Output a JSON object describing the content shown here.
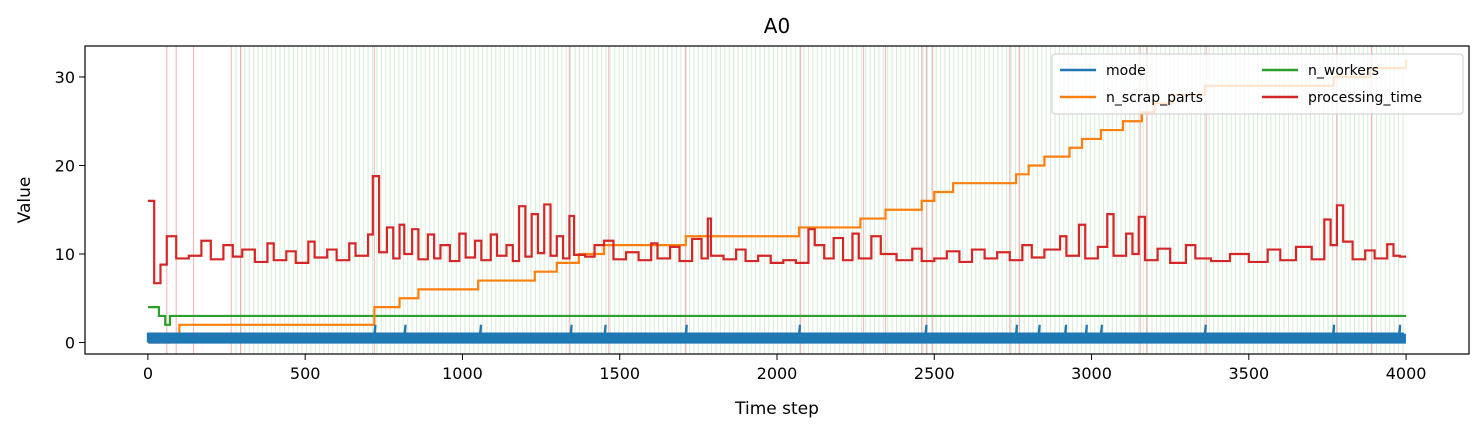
{
  "chart_data": {
    "type": "line",
    "title": "A0",
    "xlabel": "Time step",
    "ylabel": "Value",
    "xlim": [
      -200,
      4200
    ],
    "ylim": [
      -1.3,
      33.5
    ],
    "xticks": [
      0,
      500,
      1000,
      1500,
      2000,
      2500,
      3000,
      3500,
      4000
    ],
    "yticks": [
      0,
      10,
      20,
      30
    ],
    "grid": false,
    "legend_placement": "top-right",
    "legend_columns": 2,
    "series": [
      {
        "name": "mode",
        "color": "#1f77b4",
        "style": "oscillating",
        "x_range": [
          0,
          4000
        ],
        "low": 0,
        "high": 1,
        "spikes_to_2_at": [
          720,
          815,
          885,
          1055,
          1345,
          1450,
          1710,
          2070,
          2265,
          2470,
          2625,
          2760,
          2830,
          2915,
          2980,
          3030,
          3165,
          3195,
          3360,
          3770,
          3885,
          3980
        ]
      },
      {
        "name": "n_scrap_parts",
        "color": "#ff7f0e",
        "style": "step",
        "points": [
          [
            0,
            0
          ],
          [
            70,
            1
          ],
          [
            100,
            2
          ],
          [
            290,
            2
          ],
          [
            720,
            4
          ],
          [
            800,
            5
          ],
          [
            860,
            6
          ],
          [
            1050,
            7
          ],
          [
            1230,
            8
          ],
          [
            1300,
            9
          ],
          [
            1370,
            10
          ],
          [
            1450,
            11
          ],
          [
            1710,
            12
          ],
          [
            2070,
            13
          ],
          [
            2265,
            14
          ],
          [
            2345,
            15
          ],
          [
            2460,
            16
          ],
          [
            2500,
            17
          ],
          [
            2560,
            18
          ],
          [
            2760,
            19
          ],
          [
            2800,
            20
          ],
          [
            2850,
            21
          ],
          [
            2930,
            22
          ],
          [
            2970,
            23
          ],
          [
            3030,
            24
          ],
          [
            3100,
            25
          ],
          [
            3160,
            26
          ],
          [
            3200,
            27
          ],
          [
            3260,
            28
          ],
          [
            3360,
            29
          ],
          [
            3770,
            30
          ],
          [
            3885,
            31
          ],
          [
            4000,
            32
          ]
        ]
      },
      {
        "name": "n_workers",
        "color": "#2ca02c",
        "style": "step",
        "points": [
          [
            0,
            4
          ],
          [
            35,
            4
          ],
          [
            35,
            3
          ],
          [
            55,
            3
          ],
          [
            55,
            2
          ],
          [
            70,
            2
          ],
          [
            70,
            3
          ],
          [
            4000,
            3
          ]
        ]
      },
      {
        "name": "processing_time",
        "color": "#d62728",
        "style": "step",
        "points": [
          [
            0,
            16
          ],
          [
            20,
            16
          ],
          [
            20,
            6.7
          ],
          [
            40,
            6.7
          ],
          [
            40,
            8.8
          ],
          [
            60,
            8.8
          ],
          [
            60,
            12
          ],
          [
            90,
            12
          ],
          [
            90,
            9.5
          ],
          [
            130,
            9.5
          ],
          [
            130,
            9.8
          ],
          [
            170,
            9.8
          ],
          [
            170,
            11.5
          ],
          [
            200,
            11.5
          ],
          [
            200,
            9.4
          ],
          [
            240,
            9.4
          ],
          [
            240,
            11
          ],
          [
            270,
            11
          ],
          [
            270,
            9.7
          ],
          [
            300,
            9.7
          ],
          [
            300,
            10.5
          ],
          [
            340,
            10.5
          ],
          [
            340,
            9.1
          ],
          [
            380,
            9.1
          ],
          [
            380,
            11.2
          ],
          [
            400,
            11.2
          ],
          [
            400,
            9.3
          ],
          [
            440,
            9.3
          ],
          [
            440,
            10.3
          ],
          [
            470,
            10.3
          ],
          [
            470,
            9.0
          ],
          [
            510,
            9.0
          ],
          [
            510,
            11.4
          ],
          [
            530,
            11.4
          ],
          [
            530,
            9.6
          ],
          [
            570,
            9.6
          ],
          [
            570,
            10.5
          ],
          [
            600,
            10.5
          ],
          [
            600,
            9.3
          ],
          [
            640,
            9.3
          ],
          [
            640,
            11.2
          ],
          [
            660,
            11.2
          ],
          [
            660,
            9.8
          ],
          [
            700,
            9.8
          ],
          [
            700,
            12.2
          ],
          [
            715,
            12.2
          ],
          [
            715,
            18.8
          ],
          [
            735,
            18.8
          ],
          [
            735,
            10.2
          ],
          [
            760,
            10.2
          ],
          [
            760,
            13.0
          ],
          [
            780,
            13.0
          ],
          [
            780,
            9.5
          ],
          [
            800,
            9.5
          ],
          [
            800,
            13.3
          ],
          [
            815,
            13.3
          ],
          [
            815,
            10.0
          ],
          [
            840,
            10.0
          ],
          [
            840,
            12.8
          ],
          [
            860,
            12.8
          ],
          [
            860,
            9.4
          ],
          [
            890,
            9.4
          ],
          [
            890,
            12.2
          ],
          [
            910,
            12.2
          ],
          [
            910,
            9.5
          ],
          [
            930,
            9.5
          ],
          [
            930,
            11.0
          ],
          [
            960,
            11.0
          ],
          [
            960,
            9.2
          ],
          [
            990,
            9.2
          ],
          [
            990,
            12.3
          ],
          [
            1010,
            12.3
          ],
          [
            1010,
            9.6
          ],
          [
            1040,
            9.6
          ],
          [
            1040,
            11.5
          ],
          [
            1060,
            11.5
          ],
          [
            1060,
            9.3
          ],
          [
            1090,
            9.3
          ],
          [
            1090,
            12.2
          ],
          [
            1110,
            12.2
          ],
          [
            1110,
            9.8
          ],
          [
            1140,
            9.8
          ],
          [
            1140,
            11.0
          ],
          [
            1160,
            11.0
          ],
          [
            1160,
            9.2
          ],
          [
            1180,
            9.2
          ],
          [
            1180,
            15.4
          ],
          [
            1200,
            15.4
          ],
          [
            1200,
            9.7
          ],
          [
            1220,
            9.7
          ],
          [
            1220,
            14.5
          ],
          [
            1240,
            14.5
          ],
          [
            1240,
            10.1
          ],
          [
            1260,
            10.1
          ],
          [
            1260,
            15.6
          ],
          [
            1280,
            15.6
          ],
          [
            1280,
            9.8
          ],
          [
            1300,
            9.8
          ],
          [
            1300,
            12.0
          ],
          [
            1320,
            12.0
          ],
          [
            1320,
            9.5
          ],
          [
            1340,
            9.5
          ],
          [
            1340,
            14.3
          ],
          [
            1355,
            14.3
          ],
          [
            1355,
            9.9
          ],
          [
            1390,
            9.9
          ],
          [
            1390,
            9.7
          ],
          [
            1420,
            9.7
          ],
          [
            1420,
            11.0
          ],
          [
            1450,
            11.0
          ],
          [
            1450,
            11.5
          ],
          [
            1480,
            11.5
          ],
          [
            1480,
            9.4
          ],
          [
            1520,
            9.4
          ],
          [
            1520,
            10.2
          ],
          [
            1560,
            10.2
          ],
          [
            1560,
            9.3
          ],
          [
            1600,
            9.3
          ],
          [
            1600,
            11.2
          ],
          [
            1620,
            11.2
          ],
          [
            1620,
            9.5
          ],
          [
            1660,
            9.5
          ],
          [
            1660,
            10.8
          ],
          [
            1690,
            10.8
          ],
          [
            1690,
            9.2
          ],
          [
            1730,
            9.2
          ],
          [
            1730,
            11.7
          ],
          [
            1760,
            11.7
          ],
          [
            1760,
            9.5
          ],
          [
            1780,
            9.5
          ],
          [
            1780,
            14.0
          ],
          [
            1790,
            14.0
          ],
          [
            1790,
            9.8
          ],
          [
            1830,
            9.8
          ],
          [
            1830,
            9.4
          ],
          [
            1870,
            9.4
          ],
          [
            1870,
            10.5
          ],
          [
            1900,
            10.5
          ],
          [
            1900,
            9.2
          ],
          [
            1940,
            9.2
          ],
          [
            1940,
            9.8
          ],
          [
            1980,
            9.8
          ],
          [
            1980,
            9.0
          ],
          [
            2020,
            9.0
          ],
          [
            2020,
            9.3
          ],
          [
            2060,
            9.3
          ],
          [
            2060,
            9.0
          ],
          [
            2100,
            9.0
          ],
          [
            2100,
            12.8
          ],
          [
            2120,
            12.8
          ],
          [
            2120,
            11.0
          ],
          [
            2150,
            11.0
          ],
          [
            2150,
            9.5
          ],
          [
            2180,
            9.5
          ],
          [
            2180,
            11.8
          ],
          [
            2210,
            11.8
          ],
          [
            2210,
            9.3
          ],
          [
            2240,
            9.3
          ],
          [
            2240,
            12.3
          ],
          [
            2260,
            12.3
          ],
          [
            2260,
            9.5
          ],
          [
            2300,
            9.5
          ],
          [
            2300,
            12.0
          ],
          [
            2330,
            12.0
          ],
          [
            2330,
            10.0
          ],
          [
            2380,
            10.0
          ],
          [
            2380,
            9.3
          ],
          [
            2430,
            9.3
          ],
          [
            2430,
            10.6
          ],
          [
            2460,
            10.6
          ],
          [
            2460,
            9.2
          ],
          [
            2500,
            9.2
          ],
          [
            2500,
            9.5
          ],
          [
            2540,
            9.5
          ],
          [
            2540,
            10.3
          ],
          [
            2580,
            10.3
          ],
          [
            2580,
            9.1
          ],
          [
            2620,
            9.1
          ],
          [
            2620,
            10.5
          ],
          [
            2660,
            10.5
          ],
          [
            2660,
            9.5
          ],
          [
            2700,
            9.5
          ],
          [
            2700,
            10.2
          ],
          [
            2740,
            10.2
          ],
          [
            2740,
            9.3
          ],
          [
            2780,
            9.3
          ],
          [
            2780,
            11.0
          ],
          [
            2810,
            11.0
          ],
          [
            2810,
            9.6
          ],
          [
            2850,
            9.6
          ],
          [
            2850,
            10.5
          ],
          [
            2900,
            10.5
          ],
          [
            2900,
            12.0
          ],
          [
            2920,
            12.0
          ],
          [
            2920,
            9.8
          ],
          [
            2960,
            9.8
          ],
          [
            2960,
            13.3
          ],
          [
            2980,
            13.3
          ],
          [
            2980,
            9.5
          ],
          [
            3020,
            9.5
          ],
          [
            3020,
            10.8
          ],
          [
            3050,
            10.8
          ],
          [
            3050,
            14.5
          ],
          [
            3070,
            14.5
          ],
          [
            3070,
            9.8
          ],
          [
            3110,
            9.8
          ],
          [
            3110,
            12.3
          ],
          [
            3130,
            12.3
          ],
          [
            3130,
            10.0
          ],
          [
            3150,
            10.0
          ],
          [
            3150,
            14.2
          ],
          [
            3170,
            14.2
          ],
          [
            3170,
            9.3
          ],
          [
            3210,
            9.3
          ],
          [
            3210,
            10.6
          ],
          [
            3250,
            10.6
          ],
          [
            3250,
            9.0
          ],
          [
            3300,
            9.0
          ],
          [
            3300,
            11.0
          ],
          [
            3330,
            11.0
          ],
          [
            3330,
            9.5
          ],
          [
            3380,
            9.5
          ],
          [
            3380,
            9.2
          ],
          [
            3440,
            9.2
          ],
          [
            3440,
            10.0
          ],
          [
            3500,
            10.0
          ],
          [
            3500,
            9.1
          ],
          [
            3560,
            9.1
          ],
          [
            3560,
            10.5
          ],
          [
            3600,
            10.5
          ],
          [
            3600,
            9.3
          ],
          [
            3650,
            9.3
          ],
          [
            3650,
            10.8
          ],
          [
            3700,
            10.8
          ],
          [
            3700,
            9.4
          ],
          [
            3740,
            9.4
          ],
          [
            3740,
            13.9
          ],
          [
            3760,
            13.9
          ],
          [
            3760,
            11.0
          ],
          [
            3780,
            11.0
          ],
          [
            3780,
            15.5
          ],
          [
            3800,
            15.5
          ],
          [
            3800,
            11.4
          ],
          [
            3830,
            11.4
          ],
          [
            3830,
            9.4
          ],
          [
            3870,
            9.4
          ],
          [
            3870,
            10.4
          ],
          [
            3900,
            10.4
          ],
          [
            3900,
            9.5
          ],
          [
            3940,
            9.5
          ],
          [
            3940,
            11.1
          ],
          [
            3960,
            11.1
          ],
          [
            3960,
            9.8
          ],
          [
            3980,
            9.8
          ],
          [
            3980,
            9.7
          ],
          [
            4000,
            9.7
          ]
        ]
      }
    ],
    "background_vlines": {
      "green_color": "#2ca02c",
      "red_color": "#d62728",
      "red_x": [
        60,
        90,
        145,
        265,
        295,
        720,
        1340,
        1465,
        1710,
        2075,
        2275,
        2345,
        2460,
        2475,
        2495,
        2740,
        2770,
        3155,
        3175,
        3365,
        3780,
        3890
      ]
    }
  }
}
